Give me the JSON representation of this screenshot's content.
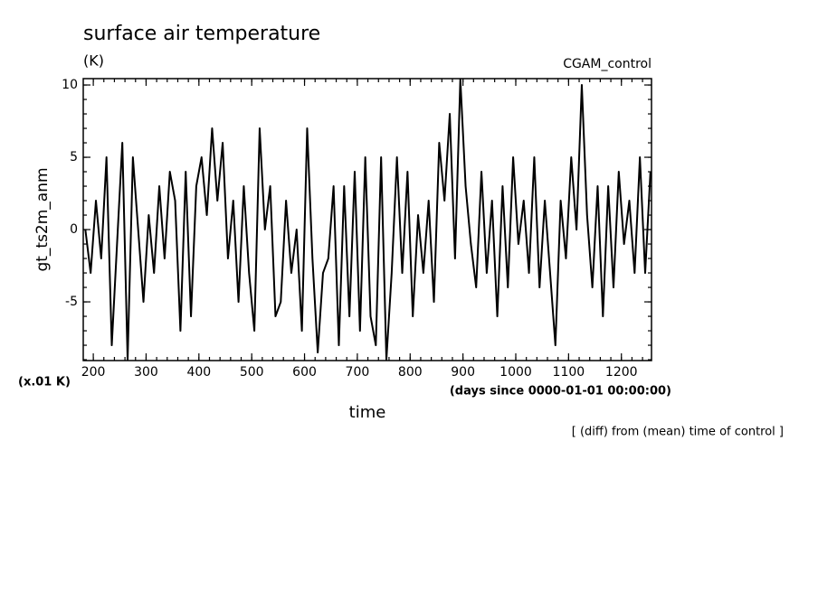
{
  "chart_data": {
    "type": "line",
    "title": "surface air temperature",
    "subtitle": "(K)",
    "annotation_right": "CGAM_control",
    "y_label": "gt_ts2m_anm",
    "y_unit": "(x.01 K)",
    "x_label": "time",
    "x_unit": "(days since 0000-01-01 00:00:00)",
    "footnote": "[ (diff) from (mean) time of control ]",
    "x": [
      185,
      195,
      205,
      215,
      225,
      235,
      245,
      255,
      265,
      275,
      285,
      295,
      305,
      315,
      325,
      335,
      345,
      355,
      365,
      375,
      385,
      395,
      405,
      415,
      425,
      435,
      445,
      455,
      465,
      475,
      485,
      495,
      505,
      515,
      525,
      535,
      545,
      555,
      565,
      575,
      585,
      595,
      605,
      615,
      625,
      635,
      645,
      655,
      665,
      675,
      685,
      695,
      705,
      715,
      725,
      735,
      745,
      755,
      765,
      775,
      785,
      795,
      805,
      815,
      825,
      835,
      845,
      855,
      865,
      875,
      885,
      895,
      905,
      915,
      925,
      935,
      945,
      955,
      965,
      975,
      985,
      995,
      1005,
      1015,
      1025,
      1035,
      1045,
      1055,
      1065,
      1075,
      1085,
      1095,
      1105,
      1115,
      1125,
      1135,
      1145,
      1155,
      1165,
      1175,
      1185,
      1195,
      1205,
      1215,
      1225,
      1235,
      1245,
      1255
    ],
    "series": [
      {
        "color": "#000000",
        "values": [
          0,
          -3,
          2,
          -2,
          5,
          -8,
          -1,
          6,
          -9,
          5,
          0,
          -5,
          1,
          -3,
          3,
          -2,
          4,
          2,
          -7,
          4,
          -6,
          3,
          5,
          1,
          7,
          2,
          6,
          -2,
          2,
          -5,
          3,
          -3,
          -7,
          7,
          0,
          3,
          -6,
          -5,
          2,
          -3,
          0,
          -7,
          7,
          -2,
          -8.5,
          -3,
          -2,
          3,
          -8,
          3,
          -6,
          4,
          -7,
          5,
          -6,
          -8,
          5,
          -9,
          -3,
          5,
          -3,
          4,
          -6,
          1,
          -3,
          2,
          -5,
          6,
          2,
          8,
          -2,
          10.4,
          3,
          -1,
          -4,
          4,
          -3,
          2,
          -6,
          3,
          -4,
          5,
          -1,
          2,
          -3,
          5,
          -4,
          2,
          -3,
          -8,
          2,
          -2,
          5,
          0,
          10,
          1,
          -4,
          3,
          -6,
          3,
          -4,
          4,
          -1,
          2,
          -3,
          5,
          -3,
          4
        ]
      }
    ],
    "xlim": [
      181,
      1257
    ],
    "ylim": [
      -9.06,
      10.44
    ],
    "xticks": [
      200,
      300,
      400,
      500,
      600,
      700,
      800,
      900,
      1000,
      1100,
      1200
    ],
    "yticks": [
      -5,
      0,
      5,
      10
    ],
    "xminor": [
      200,
      220,
      240,
      260,
      280,
      300,
      320,
      340,
      360,
      380,
      400,
      420,
      440,
      460,
      480,
      500,
      520,
      540,
      560,
      580,
      600,
      620,
      640,
      660,
      680,
      700,
      720,
      740,
      760,
      780,
      800,
      820,
      840,
      860,
      880,
      900,
      920,
      940,
      960,
      980,
      1000,
      1020,
      1040,
      1060,
      1080,
      1100,
      1120,
      1140,
      1160,
      1180,
      1200,
      1220,
      1240
    ],
    "yminor": [
      -9,
      -8,
      -7,
      -6,
      -5,
      -4,
      -3,
      -2,
      -1,
      0,
      1,
      2,
      3,
      4,
      5,
      6,
      7,
      8,
      9,
      10
    ]
  }
}
